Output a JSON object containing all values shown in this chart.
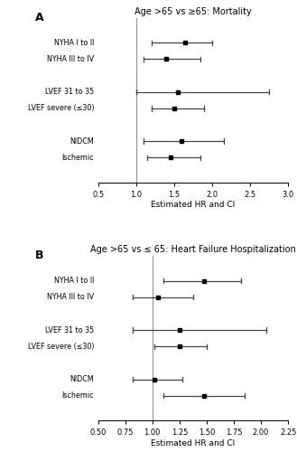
{
  "panel_A": {
    "title": "Age >65 vs ≥65: Mortality",
    "xlabel": "Estimated HR and CI",
    "xlim": [
      0.5,
      3.0
    ],
    "xticks": [
      0.5,
      1.0,
      1.5,
      2.0,
      2.5,
      3.0
    ],
    "xticklabels": [
      "0.5",
      "1.0",
      "1.5",
      "2.0",
      "2.5",
      "3.0"
    ],
    "vline": 1.0,
    "rows": [
      {
        "label": "NYHA I to II",
        "hr": 1.65,
        "lo": 1.2,
        "hi": 2.0,
        "y": 6
      },
      {
        "label": "NYHA III to IV",
        "hr": 1.4,
        "lo": 1.1,
        "hi": 1.85,
        "y": 5
      },
      {
        "label": "LVEF 31 to 35",
        "hr": 1.55,
        "lo": 1.0,
        "hi": 2.75,
        "y": 3
      },
      {
        "label": "LVEF severe (≤30)",
        "hr": 1.5,
        "lo": 1.2,
        "hi": 1.9,
        "y": 2
      },
      {
        "label": "NIDCM",
        "hr": 1.6,
        "lo": 1.1,
        "hi": 2.15,
        "y": 0
      },
      {
        "label": "Ischemic",
        "hr": 1.45,
        "lo": 1.15,
        "hi": 1.85,
        "y": -1
      }
    ]
  },
  "panel_B": {
    "title": "Age >65 vs ≤ 65: Heart Failure Hospitalization",
    "xlabel": "Estimated HR and CI",
    "xlim": [
      0.5,
      2.25
    ],
    "xticks": [
      0.5,
      0.75,
      1.0,
      1.25,
      1.5,
      1.75,
      2.0,
      2.25
    ],
    "xticklabels": [
      "0.50",
      "0.75",
      "1.00",
      "1.25",
      "1.50",
      "1.75",
      "2.00",
      "2.25"
    ],
    "vline": 1.0,
    "rows": [
      {
        "label": "NYHA I to II",
        "hr": 1.48,
        "lo": 1.1,
        "hi": 1.82,
        "y": 6
      },
      {
        "label": "NYHA III to IV",
        "hr": 1.05,
        "lo": 0.82,
        "hi": 1.38,
        "y": 5
      },
      {
        "label": "LVEF 31 to 35",
        "hr": 1.25,
        "lo": 0.82,
        "hi": 2.05,
        "y": 3
      },
      {
        "label": "LVEF severe (≤30)",
        "hr": 1.25,
        "lo": 1.02,
        "hi": 1.5,
        "y": 2
      },
      {
        "label": "NIDCM",
        "hr": 1.02,
        "lo": 0.82,
        "hi": 1.28,
        "y": 0
      },
      {
        "label": "Ischemic",
        "hr": 1.48,
        "lo": 1.1,
        "hi": 1.85,
        "y": -1
      }
    ]
  },
  "marker_color": "#000000",
  "line_color": "#444444",
  "vline_color": "#999999",
  "bg_color": "#ffffff",
  "label_fontsize": 5.8,
  "title_fontsize": 7.0,
  "xlabel_fontsize": 6.5,
  "tick_fontsize": 6.0,
  "panel_label_fontsize": 9
}
